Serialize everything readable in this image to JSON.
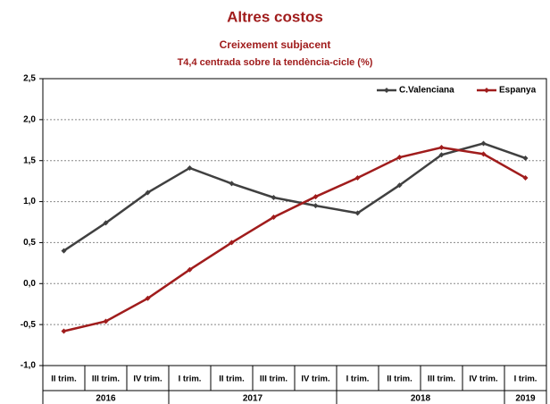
{
  "chart_data": {
    "type": "line",
    "title": "Altres costos",
    "subtitle": "Creixement  subjacent",
    "subtitle2": "T4,4 centrada sobre la tendència-cicle (%)",
    "categories": [
      "II trim.",
      "III trim.",
      "IV trim.",
      "I trim.",
      "II trim.",
      "III trim.",
      "IV trim.",
      "I trim.",
      "II trim.",
      "III trim.",
      "IV trim.",
      "I trim."
    ],
    "years": [
      "2016",
      null,
      null,
      "2017",
      null,
      null,
      null,
      "2018",
      null,
      null,
      null,
      "2019"
    ],
    "series": [
      {
        "name": "C.Valenciana",
        "color": "#404040",
        "values": [
          0.4,
          0.74,
          1.11,
          1.41,
          1.22,
          1.05,
          0.95,
          0.86,
          1.2,
          1.57,
          1.71,
          1.53
        ]
      },
      {
        "name": "Espanya",
        "color": "#a01c1c",
        "values": [
          -0.58,
          -0.46,
          -0.18,
          0.17,
          0.5,
          0.81,
          1.06,
          1.29,
          1.54,
          1.66,
          1.58,
          1.29
        ]
      }
    ],
    "ylim": [
      -1.0,
      2.5
    ],
    "yticks": [
      {
        "value": -1.0,
        "label": "-1,0"
      },
      {
        "value": -0.5,
        "label": "-0,5"
      },
      {
        "value": 0.0,
        "label": "0,0"
      },
      {
        "value": 0.5,
        "label": "0,5"
      },
      {
        "value": 1.0,
        "label": "1,0"
      },
      {
        "value": 1.5,
        "label": "1,5"
      },
      {
        "value": 2.0,
        "label": "2,0"
      },
      {
        "value": 2.5,
        "label": "2,5"
      }
    ],
    "grid": true,
    "legend": "upper right",
    "title_color": "#a01c1c"
  }
}
